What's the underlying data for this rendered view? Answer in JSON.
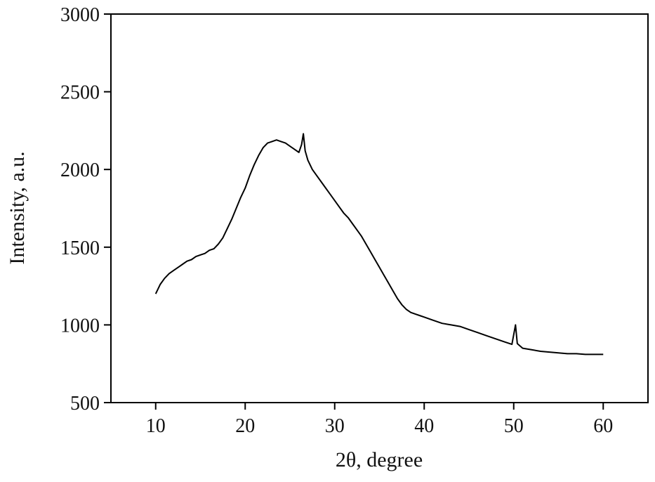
{
  "chart_data": {
    "type": "line",
    "xlabel": "2θ, degree",
    "ylabel": "Intensity, a.u.",
    "xlim": [
      5,
      65
    ],
    "xticks": [
      10,
      20,
      30,
      40,
      50,
      60
    ],
    "ylim": [
      500,
      3000
    ],
    "yticks": [
      500,
      1000,
      1500,
      2000,
      2500,
      3000
    ],
    "x": [
      10,
      10.5,
      11,
      11.5,
      12,
      12.5,
      13,
      13.5,
      14,
      14.5,
      15,
      15.5,
      16,
      16.5,
      17,
      17.5,
      18,
      18.5,
      19,
      19.5,
      20,
      20.5,
      21,
      21.5,
      22,
      22.5,
      23,
      23.5,
      24,
      24.5,
      25,
      25.5,
      26,
      26.3,
      26.5,
      26.7,
      27,
      27.5,
      28,
      28.5,
      29,
      29.5,
      30,
      30.5,
      31,
      31.5,
      32,
      32.5,
      33,
      33.5,
      34,
      34.5,
      35,
      35.5,
      36,
      36.5,
      37,
      37.5,
      38,
      38.5,
      39,
      39.5,
      40,
      41,
      42,
      43,
      44,
      45,
      46,
      47,
      48,
      49,
      49.8,
      50.2,
      50.4,
      51,
      52,
      53,
      54,
      55,
      56,
      57,
      58,
      59,
      60
    ],
    "series": [
      {
        "color": "#000000",
        "values": [
          1200,
          1260,
          1300,
          1330,
          1350,
          1370,
          1390,
          1410,
          1420,
          1440,
          1450,
          1460,
          1480,
          1490,
          1520,
          1560,
          1620,
          1680,
          1750,
          1820,
          1880,
          1960,
          2030,
          2090,
          2140,
          2170,
          2180,
          2190,
          2180,
          2170,
          2150,
          2130,
          2110,
          2160,
          2230,
          2120,
          2060,
          2000,
          1960,
          1920,
          1880,
          1840,
          1800,
          1760,
          1720,
          1690,
          1650,
          1610,
          1570,
          1520,
          1470,
          1420,
          1370,
          1320,
          1270,
          1220,
          1170,
          1130,
          1100,
          1080,
          1070,
          1060,
          1050,
          1030,
          1010,
          1000,
          990,
          970,
          950,
          930,
          910,
          890,
          875,
          1000,
          880,
          850,
          840,
          830,
          825,
          820,
          815,
          815,
          810,
          810,
          810
        ]
      }
    ]
  }
}
